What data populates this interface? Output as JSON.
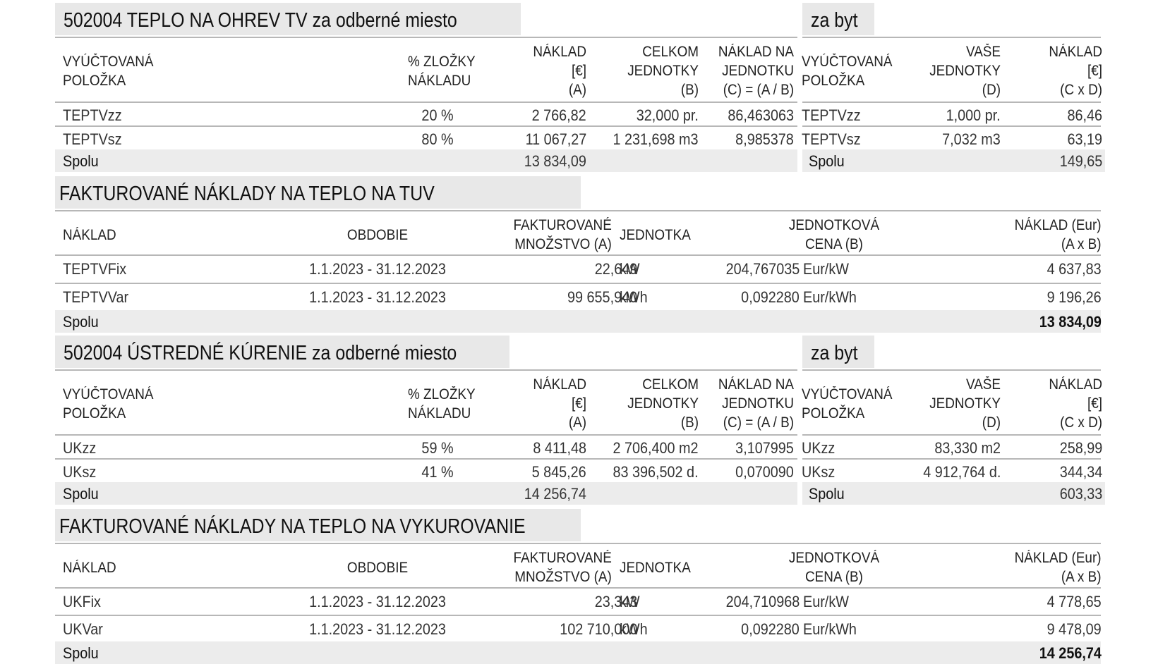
{
  "sec1": {
    "title": "502004 TEPLO NA OHREV TV za odberné miesto",
    "title_right": "za byt",
    "headers": {
      "polozka": [
        "VYÚČTOVANÁ",
        "POLOŽKA"
      ],
      "zlozky": [
        "% ZLOŽKY",
        "NÁKLADU"
      ],
      "naklad": [
        "NÁKLAD",
        "[€]",
        "(A)"
      ],
      "celkom": [
        "CELKOM",
        "JEDNOTKY",
        "(B)"
      ],
      "naklad_na": [
        "NÁKLAD NA",
        "JEDNOTKU",
        "(C) = (A / B)"
      ],
      "polozka_r": [
        "VYÚČTOVANÁ",
        "POLOŽKA"
      ],
      "vase": [
        "VAŠE",
        "JEDNOTKY",
        "(D)"
      ],
      "naklad_r": [
        "NÁKLAD",
        "[€]",
        "(C x D)"
      ]
    },
    "rows": [
      {
        "name": "TEPTVzz",
        "pct": "20 %",
        "naklad": "2 766,82",
        "celkom": "32,000 pr.",
        "na_jed": "86,463063",
        "name_r": "TEPTVzz",
        "vase": "1,000 pr.",
        "naklad_r": "86,46"
      },
      {
        "name": "TEPTVsz",
        "pct": "80 %",
        "naklad": "11 067,27",
        "celkom": "1 231,698 m3",
        "na_jed": "8,985378",
        "name_r": "TEPTVsz",
        "vase": "7,032 m3",
        "naklad_r": "63,19"
      }
    ],
    "total": {
      "label": "Spolu",
      "naklad": "13 834,09",
      "label_r": "Spolu",
      "naklad_r": "149,65"
    }
  },
  "sec2": {
    "title": "FAKTUROVANÉ NÁKLADY NA TEPLO NA TUV",
    "headers": {
      "naklad": "NÁKLAD",
      "obdobie": "OBDOBIE",
      "mnozstvo": [
        "FAKTUROVANÉ",
        "MNOŽSTVO  (A)"
      ],
      "jednotka": "JEDNOTKA",
      "cena": [
        "JEDNOTKOVÁ",
        "CENA  (B)"
      ],
      "naklad_eur": [
        "NÁKLAD (Eur)",
        "(A x B)"
      ]
    },
    "rows": [
      {
        "name": "TEPTVFix",
        "obdobie": "1.1.2023 - 31.12.2023",
        "mnozstvo": "22,649",
        "jednotka": "kW",
        "cena": "204,767035",
        "cena_unit": "Eur/kW",
        "naklad": "4 637,83"
      },
      {
        "name": "TEPTVVar",
        "obdobie": "1.1.2023 - 31.12.2023",
        "mnozstvo": "99 655,940",
        "jednotka": "kWh",
        "cena": "0,092280",
        "cena_unit": "Eur/kWh",
        "naklad": "9 196,26"
      }
    ],
    "total": {
      "label": "Spolu",
      "naklad": "13 834,09"
    }
  },
  "sec3": {
    "title": "502004 ÚSTREDNÉ KÚRENIE za odberné miesto",
    "title_right": "za byt",
    "headers": {
      "polozka": [
        "VYÚČTOVANÁ",
        "POLOŽKA"
      ],
      "zlozky": [
        "% ZLOŽKY",
        "NÁKLADU"
      ],
      "naklad": [
        "NÁKLAD",
        "[€]",
        "(A)"
      ],
      "celkom": [
        "CELKOM",
        "JEDNOTKY",
        "(B)"
      ],
      "naklad_na": [
        "NÁKLAD NA",
        "JEDNOTKU",
        "(C) = (A / B)"
      ],
      "polozka_r": [
        "VYÚČTOVANÁ",
        "POLOŽKA"
      ],
      "vase": [
        "VAŠE",
        "JEDNOTKY",
        "(D)"
      ],
      "naklad_r": [
        "NÁKLAD",
        "[€]",
        "(C x D)"
      ]
    },
    "rows": [
      {
        "name": "UKzz",
        "pct": "59 %",
        "naklad": "8 411,48",
        "celkom": "2 706,400 m2",
        "na_jed": "3,107995",
        "name_r": "UKzz",
        "vase": "83,330 m2",
        "naklad_r": "258,99"
      },
      {
        "name": "UKsz",
        "pct": "41 %",
        "naklad": "5 845,26",
        "celkom": "83 396,502 d.",
        "na_jed": "0,070090",
        "name_r": "UKsz",
        "vase": "4 912,764 d.",
        "naklad_r": "344,34"
      }
    ],
    "total": {
      "label": "Spolu",
      "naklad": "14 256,74",
      "label_r": "Spolu",
      "naklad_r": "603,33"
    }
  },
  "sec4": {
    "title": "FAKTUROVANÉ NÁKLADY NA TEPLO NA VYKUROVANIE",
    "headers": {
      "naklad": "NÁKLAD",
      "obdobie": "OBDOBIE",
      "mnozstvo": [
        "FAKTUROVANÉ",
        "MNOŽSTVO  (A)"
      ],
      "jednotka": "JEDNOTKA",
      "cena": [
        "JEDNOTKOVÁ",
        "CENA  (B)"
      ],
      "naklad_eur": [
        "NÁKLAD (Eur)",
        "(A x B)"
      ]
    },
    "rows": [
      {
        "name": "UKFix",
        "obdobie": "1.1.2023 - 31.12.2023",
        "mnozstvo": "23,343",
        "jednotka": "kW",
        "cena": "204,710968",
        "cena_unit": "Eur/kW",
        "naklad": "4 778,65"
      },
      {
        "name": "UKVar",
        "obdobie": "1.1.2023 - 31.12.2023",
        "mnozstvo": "102 710,000",
        "jednotka": "kWh",
        "cena": "0,092280",
        "cena_unit": "Eur/kWh",
        "naklad": "9 478,09"
      }
    ],
    "total": {
      "label": "Spolu",
      "naklad": "14 256,74"
    }
  }
}
